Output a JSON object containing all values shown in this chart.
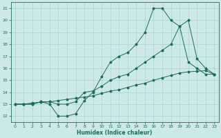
{
  "xlabel": "Humidex (Indice chaleur)",
  "bg_color": "#cce8e8",
  "grid_color": "#aad0d0",
  "line_color": "#1a6b5a",
  "xlim": [
    -0.5,
    23.5
  ],
  "ylim": [
    11.5,
    21.5
  ],
  "yticks": [
    12,
    13,
    14,
    15,
    16,
    17,
    18,
    19,
    20,
    21
  ],
  "xticks": [
    0,
    1,
    2,
    3,
    4,
    5,
    6,
    7,
    8,
    9,
    10,
    11,
    12,
    13,
    14,
    15,
    16,
    17,
    18,
    19,
    20,
    21,
    22,
    23
  ],
  "line1_x": [
    0,
    1,
    2,
    3,
    4,
    5,
    6,
    7,
    8,
    9,
    10,
    11,
    12,
    13,
    14,
    15,
    16,
    17,
    18,
    19,
    20,
    21,
    22,
    23
  ],
  "line1_y": [
    13,
    13,
    13,
    13.2,
    13.0,
    12.0,
    12.0,
    12.2,
    13.3,
    14.0,
    15.3,
    16.5,
    17.0,
    17.3,
    18.0,
    19.0,
    21.0,
    21.0,
    20.0,
    19.5,
    16.5,
    16.0,
    15.5,
    15.5
  ],
  "line2_x": [
    0,
    1,
    2,
    3,
    4,
    5,
    6,
    7,
    8,
    9,
    10,
    11,
    12,
    13,
    14,
    15,
    16,
    17,
    18,
    19,
    20,
    21,
    22,
    23
  ],
  "line2_y": [
    13,
    13,
    13,
    13.2,
    13.2,
    13.0,
    13.0,
    13.2,
    14.0,
    14.1,
    14.5,
    15.0,
    15.3,
    15.5,
    16.0,
    16.5,
    17.0,
    17.5,
    18.0,
    19.5,
    20.0,
    16.8,
    16.0,
    15.5
  ],
  "line3_x": [
    0,
    1,
    2,
    3,
    4,
    5,
    6,
    7,
    8,
    9,
    10,
    11,
    12,
    13,
    14,
    15,
    16,
    17,
    18,
    19,
    20,
    21,
    22,
    23
  ],
  "line3_y": [
    13.0,
    13.0,
    13.1,
    13.15,
    13.2,
    13.3,
    13.4,
    13.5,
    13.6,
    13.7,
    13.9,
    14.1,
    14.2,
    14.4,
    14.6,
    14.75,
    15.0,
    15.2,
    15.4,
    15.6,
    15.7,
    15.75,
    15.8,
    15.5
  ]
}
